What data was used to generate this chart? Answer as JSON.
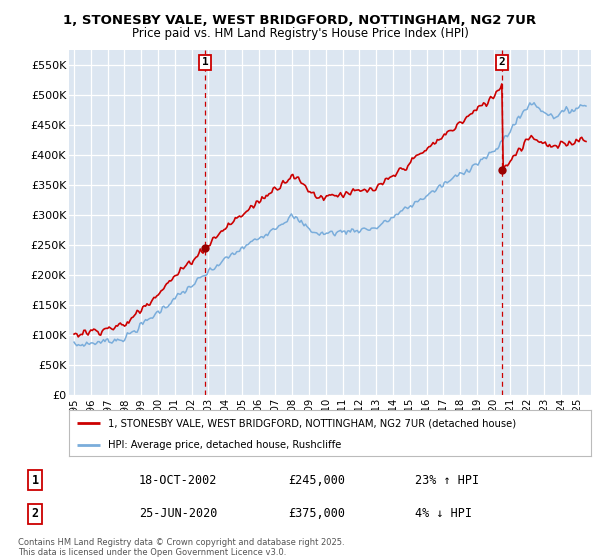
{
  "title_line1": "1, STONESBY VALE, WEST BRIDGFORD, NOTTINGHAM, NG2 7UR",
  "title_line2": "Price paid vs. HM Land Registry's House Price Index (HPI)",
  "ylabel_ticks": [
    "£0",
    "£50K",
    "£100K",
    "£150K",
    "£200K",
    "£250K",
    "£300K",
    "£350K",
    "£400K",
    "£450K",
    "£500K",
    "£550K"
  ],
  "ylabel_values": [
    0,
    50000,
    100000,
    150000,
    200000,
    250000,
    300000,
    350000,
    400000,
    450000,
    500000,
    550000
  ],
  "ylim": [
    0,
    575000
  ],
  "xlim_start": 1994.7,
  "xlim_end": 2025.8,
  "xticks": [
    1995,
    1996,
    1997,
    1998,
    1999,
    2000,
    2001,
    2002,
    2003,
    2004,
    2005,
    2006,
    2007,
    2008,
    2009,
    2010,
    2011,
    2012,
    2013,
    2014,
    2015,
    2016,
    2017,
    2018,
    2019,
    2020,
    2021,
    2022,
    2023,
    2024,
    2025
  ],
  "sale1_x": 2002.8,
  "sale1_y": 245000,
  "sale1_label": "1",
  "sale2_x": 2020.5,
  "sale2_y": 375000,
  "sale2_label": "2",
  "line1_color": "#cc0000",
  "line2_color": "#7aaddb",
  "marker_color": "#990000",
  "vline_color": "#cc0000",
  "legend_label1": "1, STONESBY VALE, WEST BRIDGFORD, NOTTINGHAM, NG2 7UR (detached house)",
  "legend_label2": "HPI: Average price, detached house, Rushcliffe",
  "annotation1_label": "1",
  "annotation2_label": "2",
  "table_row1": [
    "1",
    "18-OCT-2002",
    "£245,000",
    "23% ↑ HPI"
  ],
  "table_row2": [
    "2",
    "25-JUN-2020",
    "£375,000",
    "4% ↓ HPI"
  ],
  "footer": "Contains HM Land Registry data © Crown copyright and database right 2025.\nThis data is licensed under the Open Government Licence v3.0.",
  "bg_color": "#ffffff",
  "plot_bg_color": "#dce6f1",
  "grid_color": "#ffffff"
}
